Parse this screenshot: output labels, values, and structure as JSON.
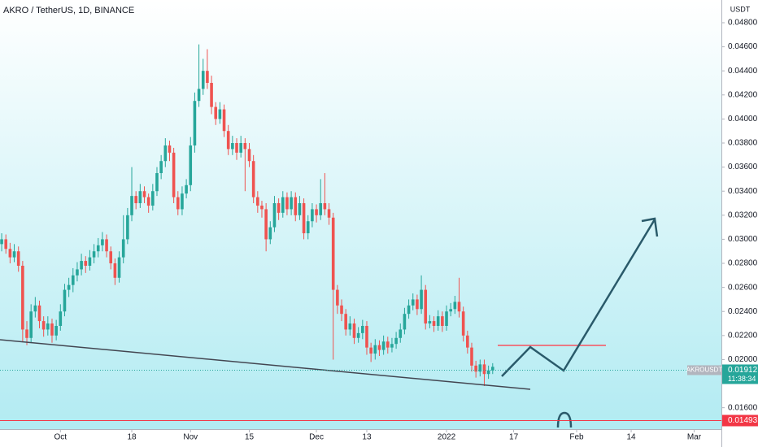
{
  "chart_data": {
    "type": "candlestick",
    "title": "AKRO / TetherUS, 1D, BINANCE",
    "y_axis_label": "USDT",
    "up_color": "#26a69a",
    "down_color": "#ef5350",
    "xlim": [
      -0.4,
      171.5
    ],
    "ylim": [
      0.01422,
      0.04989
    ],
    "xticks": [
      {
        "value": 14,
        "label": "Oct"
      },
      {
        "value": 31,
        "label": "18"
      },
      {
        "value": 45,
        "label": "Nov"
      },
      {
        "value": 59,
        "label": "15"
      },
      {
        "value": 75,
        "label": "Dec"
      },
      {
        "value": 87,
        "label": "13"
      },
      {
        "value": 106,
        "label": "2022"
      },
      {
        "value": 122,
        "label": "17"
      },
      {
        "value": 137,
        "label": "Feb"
      },
      {
        "value": 150,
        "label": "14"
      },
      {
        "value": 165,
        "label": "Mar"
      }
    ],
    "yticks": [
      {
        "value": 0.048,
        "label": "0.04800"
      },
      {
        "value": 0.046,
        "label": "0.04600"
      },
      {
        "value": 0.044,
        "label": "0.04400"
      },
      {
        "value": 0.042,
        "label": "0.04200"
      },
      {
        "value": 0.04,
        "label": "0.04000"
      },
      {
        "value": 0.038,
        "label": "0.03800"
      },
      {
        "value": 0.036,
        "label": "0.03600"
      },
      {
        "value": 0.034,
        "label": "0.03400"
      },
      {
        "value": 0.032,
        "label": "0.03200"
      },
      {
        "value": 0.03,
        "label": "0.03000"
      },
      {
        "value": 0.028,
        "label": "0.02800"
      },
      {
        "value": 0.026,
        "label": "0.02600"
      },
      {
        "value": 0.024,
        "label": "0.02400"
      },
      {
        "value": 0.022,
        "label": "0.02200"
      },
      {
        "value": 0.02,
        "label": "0.02000"
      },
      {
        "value": 0.016,
        "label": "0.01600"
      }
    ],
    "last_price": {
      "symbol": "AKROUSDT",
      "value": 0.01912,
      "label": "0.01912",
      "countdown": "11:38:34"
    },
    "price_line": {
      "value": 0.01493,
      "label": "0.01493",
      "color": "#f23645"
    },
    "candles": [
      [
        0.0296,
        0.0305,
        0.029,
        0.03
      ],
      [
        0.03,
        0.0304,
        0.0288,
        0.0292
      ],
      [
        0.0292,
        0.0297,
        0.028,
        0.0285
      ],
      [
        0.0285,
        0.0296,
        0.0281,
        0.029
      ],
      [
        0.029,
        0.0294,
        0.0273,
        0.0278
      ],
      [
        0.0278,
        0.0282,
        0.0215,
        0.0225
      ],
      [
        0.0225,
        0.0232,
        0.0212,
        0.0218
      ],
      [
        0.0218,
        0.0246,
        0.0214,
        0.024
      ],
      [
        0.024,
        0.0252,
        0.0235,
        0.0245
      ],
      [
        0.0245,
        0.0249,
        0.0226,
        0.0232
      ],
      [
        0.0232,
        0.0236,
        0.0219,
        0.0225
      ],
      [
        0.0225,
        0.0236,
        0.022,
        0.023
      ],
      [
        0.023,
        0.0234,
        0.0214,
        0.022
      ],
      [
        0.022,
        0.0233,
        0.0216,
        0.0228
      ],
      [
        0.0228,
        0.0246,
        0.0224,
        0.024
      ],
      [
        0.024,
        0.0263,
        0.0236,
        0.0258
      ],
      [
        0.0258,
        0.0268,
        0.0252,
        0.0262
      ],
      [
        0.0262,
        0.0276,
        0.0256,
        0.027
      ],
      [
        0.027,
        0.0281,
        0.0265,
        0.0275
      ],
      [
        0.0275,
        0.0288,
        0.027,
        0.0282
      ],
      [
        0.0282,
        0.0286,
        0.0272,
        0.0278
      ],
      [
        0.0278,
        0.0291,
        0.0274,
        0.0285
      ],
      [
        0.0285,
        0.0296,
        0.028,
        0.029
      ],
      [
        0.029,
        0.0301,
        0.0285,
        0.0295
      ],
      [
        0.0295,
        0.0306,
        0.029,
        0.03
      ],
      [
        0.03,
        0.0304,
        0.0285,
        0.029
      ],
      [
        0.029,
        0.0294,
        0.0275,
        0.028
      ],
      [
        0.028,
        0.0284,
        0.0262,
        0.0268
      ],
      [
        0.0268,
        0.029,
        0.0264,
        0.0285
      ],
      [
        0.0285,
        0.032,
        0.028,
        0.03
      ],
      [
        0.03,
        0.0326,
        0.0296,
        0.032
      ],
      [
        0.032,
        0.036,
        0.0315,
        0.0336
      ],
      [
        0.0336,
        0.034,
        0.0325,
        0.033
      ],
      [
        0.033,
        0.0346,
        0.0326,
        0.034
      ],
      [
        0.034,
        0.0344,
        0.033,
        0.0335
      ],
      [
        0.0335,
        0.0338,
        0.0322,
        0.0328
      ],
      [
        0.0328,
        0.0346,
        0.0324,
        0.034
      ],
      [
        0.034,
        0.036,
        0.0336,
        0.0355
      ],
      [
        0.0355,
        0.037,
        0.035,
        0.0365
      ],
      [
        0.0365,
        0.0384,
        0.036,
        0.0378
      ],
      [
        0.0378,
        0.0382,
        0.0365,
        0.0372
      ],
      [
        0.0372,
        0.0376,
        0.033,
        0.0335
      ],
      [
        0.0335,
        0.034,
        0.032,
        0.0325
      ],
      [
        0.0325,
        0.0344,
        0.032,
        0.0338
      ],
      [
        0.0338,
        0.035,
        0.0334,
        0.0345
      ],
      [
        0.0345,
        0.0385,
        0.034,
        0.0378
      ],
      [
        0.0378,
        0.0422,
        0.0372,
        0.0415
      ],
      [
        0.0415,
        0.0462,
        0.041,
        0.0425
      ],
      [
        0.0425,
        0.045,
        0.042,
        0.044
      ],
      [
        0.044,
        0.0458,
        0.0425,
        0.043
      ],
      [
        0.043,
        0.0436,
        0.0404,
        0.041
      ],
      [
        0.041,
        0.0414,
        0.0395,
        0.04
      ],
      [
        0.04,
        0.0414,
        0.0396,
        0.0408
      ],
      [
        0.0408,
        0.0412,
        0.0385,
        0.039
      ],
      [
        0.039,
        0.0395,
        0.037,
        0.0375
      ],
      [
        0.0375,
        0.0386,
        0.037,
        0.038
      ],
      [
        0.038,
        0.0384,
        0.0366,
        0.0372
      ],
      [
        0.0372,
        0.0386,
        0.0368,
        0.038
      ],
      [
        0.038,
        0.0384,
        0.034,
        0.0375
      ],
      [
        0.0375,
        0.038,
        0.036,
        0.0365
      ],
      [
        0.0365,
        0.037,
        0.033,
        0.0335
      ],
      [
        0.0335,
        0.034,
        0.0322,
        0.0328
      ],
      [
        0.0328,
        0.0332,
        0.0318,
        0.0325
      ],
      [
        0.0325,
        0.033,
        0.029,
        0.03
      ],
      [
        0.03,
        0.0315,
        0.0296,
        0.031
      ],
      [
        0.031,
        0.0336,
        0.0306,
        0.033
      ],
      [
        0.033,
        0.0334,
        0.0316,
        0.0322
      ],
      [
        0.0322,
        0.034,
        0.0318,
        0.0335
      ],
      [
        0.0335,
        0.0339,
        0.032,
        0.0325
      ],
      [
        0.0325,
        0.034,
        0.032,
        0.0335
      ],
      [
        0.0335,
        0.0339,
        0.0315,
        0.032
      ],
      [
        0.032,
        0.0336,
        0.0316,
        0.033
      ],
      [
        0.033,
        0.0334,
        0.03,
        0.0305
      ],
      [
        0.0305,
        0.032,
        0.03,
        0.0315
      ],
      [
        0.0315,
        0.033,
        0.031,
        0.0325
      ],
      [
        0.0325,
        0.0329,
        0.0314,
        0.032
      ],
      [
        0.032,
        0.035,
        0.0316,
        0.033
      ],
      [
        0.033,
        0.0355,
        0.032,
        0.0325
      ],
      [
        0.0325,
        0.033,
        0.0312,
        0.0318
      ],
      [
        0.0318,
        0.0322,
        0.02,
        0.0258
      ],
      [
        0.0258,
        0.0262,
        0.0238,
        0.0245
      ],
      [
        0.0245,
        0.025,
        0.0232,
        0.0238
      ],
      [
        0.0238,
        0.0242,
        0.022,
        0.0225
      ],
      [
        0.0225,
        0.0236,
        0.022,
        0.023
      ],
      [
        0.023,
        0.0234,
        0.0213,
        0.0218
      ],
      [
        0.0218,
        0.0227,
        0.0214,
        0.0222
      ],
      [
        0.0222,
        0.0233,
        0.0217,
        0.0228
      ],
      [
        0.0228,
        0.0232,
        0.0204,
        0.021
      ],
      [
        0.021,
        0.0214,
        0.0198,
        0.0205
      ],
      [
        0.0205,
        0.0217,
        0.02,
        0.0212
      ],
      [
        0.0212,
        0.0216,
        0.0203,
        0.0208
      ],
      [
        0.0208,
        0.022,
        0.0204,
        0.0215
      ],
      [
        0.0215,
        0.0219,
        0.0205,
        0.021
      ],
      [
        0.021,
        0.0218,
        0.0206,
        0.0213
      ],
      [
        0.0213,
        0.0223,
        0.0209,
        0.0218
      ],
      [
        0.0218,
        0.023,
        0.0214,
        0.0225
      ],
      [
        0.0225,
        0.0243,
        0.0221,
        0.0238
      ],
      [
        0.0238,
        0.025,
        0.0234,
        0.0245
      ],
      [
        0.0245,
        0.0255,
        0.0241,
        0.025
      ],
      [
        0.025,
        0.0254,
        0.0237,
        0.0242
      ],
      [
        0.0242,
        0.027,
        0.0238,
        0.0258
      ],
      [
        0.0258,
        0.0262,
        0.0225,
        0.023
      ],
      [
        0.023,
        0.0237,
        0.0226,
        0.0232
      ],
      [
        0.0232,
        0.0236,
        0.0223,
        0.0228
      ],
      [
        0.0228,
        0.0241,
        0.0224,
        0.0236
      ],
      [
        0.0236,
        0.024,
        0.0223,
        0.0228
      ],
      [
        0.0228,
        0.0245,
        0.0224,
        0.024
      ],
      [
        0.024,
        0.0247,
        0.0236,
        0.0242
      ],
      [
        0.0242,
        0.0253,
        0.0238,
        0.0248
      ],
      [
        0.0248,
        0.0268,
        0.0235,
        0.024
      ],
      [
        0.024,
        0.0244,
        0.0215,
        0.022
      ],
      [
        0.022,
        0.0224,
        0.0205,
        0.021
      ],
      [
        0.021,
        0.0214,
        0.019,
        0.0195
      ],
      [
        0.0195,
        0.0199,
        0.0185,
        0.019
      ],
      [
        0.019,
        0.02,
        0.0186,
        0.0196
      ],
      [
        0.0196,
        0.02,
        0.0178,
        0.0188
      ],
      [
        0.0188,
        0.0195,
        0.0184,
        0.0191
      ],
      [
        0.0191,
        0.0197,
        0.0188,
        0.0194
      ]
    ]
  }
}
